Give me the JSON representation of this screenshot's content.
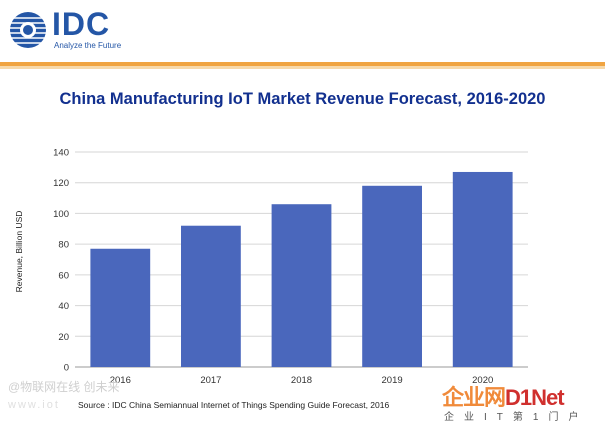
{
  "header": {
    "logo_text": "IDC",
    "logo_tagline": "Analyze the Future"
  },
  "colors": {
    "bar": "#4a67bc",
    "title": "#12308f",
    "logo": "#2456a6",
    "accent_rule": "#f0a441"
  },
  "chart_data": {
    "type": "bar",
    "title": "China Manufacturing IoT Market Revenue Forecast, 2016-2020",
    "categories": [
      "2016",
      "2017",
      "2018",
      "2019",
      "2020"
    ],
    "values": [
      77,
      92,
      106,
      118,
      127
    ],
    "ylabel": "Revenue, Billion USD",
    "xlabel": "",
    "ylim": [
      0,
      140
    ],
    "yticks": [
      0,
      20,
      40,
      60,
      80,
      100,
      120,
      140
    ],
    "grid": true,
    "legend": "none"
  },
  "source": "Source : IDC China Semiannual Internet of Things Spending Guide Forecast, 2016",
  "watermarks": {
    "left_line1": "@物联网在线  创未来",
    "left_line2": "www.iot",
    "right_brand_prefix": "企业网",
    "right_brand_suffix": "D1Net",
    "right_sub": "企业IT第1门户"
  }
}
